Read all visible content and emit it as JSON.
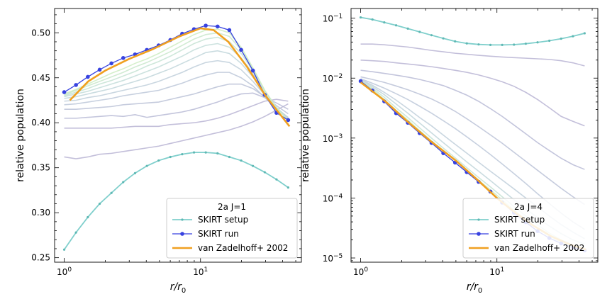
{
  "chart_data": [
    {
      "type": "line",
      "xscale": "log",
      "yscale": "linear",
      "xlim": [
        0.85,
        55
      ],
      "ylim": [
        0.245,
        0.527
      ],
      "xlabel": "r/r0",
      "xlabel_parts": {
        "base": "r/r",
        "sub": "0"
      },
      "ylabel": "relative population",
      "xticks": [
        {
          "value": 1,
          "base": "10",
          "exp": "0"
        },
        {
          "value": 10,
          "base": "10",
          "exp": "1"
        }
      ],
      "yticks": [
        "0.25",
        "0.30",
        "0.35",
        "0.40",
        "0.45",
        "0.50"
      ],
      "legend": {
        "title": "2a J=1",
        "position": "lower right"
      },
      "x": [
        1.0,
        1.22,
        1.49,
        1.82,
        2.22,
        2.71,
        3.31,
        4.04,
        4.93,
        6.01,
        7.34,
        8.96,
        10.93,
        13.34,
        16.28,
        19.87,
        24.25,
        29.6,
        36.12,
        44.0
      ],
      "series": [
        {
          "name": "SKIRT setup",
          "color": "#7fcfcc",
          "marker": "small-dot",
          "values": [
            0.259,
            0.278,
            0.295,
            0.31,
            0.322,
            0.334,
            0.344,
            0.352,
            0.358,
            0.362,
            0.365,
            0.367,
            0.367,
            0.366,
            0.362,
            0.358,
            0.352,
            0.345,
            0.337,
            0.328
          ]
        },
        {
          "name": "SKIRT run",
          "color": "#3742e0",
          "marker": "dot",
          "values": [
            0.434,
            0.442,
            0.451,
            0.459,
            0.466,
            0.472,
            0.476,
            0.481,
            0.486,
            0.492,
            0.499,
            0.504,
            0.508,
            0.507,
            0.503,
            0.481,
            0.458,
            0.431,
            0.411,
            0.403
          ]
        },
        {
          "name": "van Zadelhoff+ 2002",
          "color": "#f0a020",
          "marker": "none",
          "x": [
            1.1,
            1.5,
            2.0,
            3.0,
            4.5,
            7.0,
            10.0,
            12.5,
            16.0,
            22.0,
            30.0,
            45.0
          ],
          "values": [
            0.425,
            0.446,
            0.458,
            0.471,
            0.482,
            0.496,
            0.505,
            0.503,
            0.49,
            0.462,
            0.43,
            0.396
          ]
        }
      ],
      "iterations": [
        {
          "color": "#b8b4d4",
          "values": [
            0.362,
            0.36,
            0.362,
            0.365,
            0.366,
            0.368,
            0.37,
            0.372,
            0.374,
            0.377,
            0.38,
            0.383,
            0.386,
            0.389,
            0.392,
            0.396,
            0.401,
            0.407,
            0.414,
            0.421
          ]
        },
        {
          "color": "#b8b4d4",
          "values": [
            0.394,
            0.394,
            0.394,
            0.394,
            0.394,
            0.395,
            0.396,
            0.396,
            0.396,
            0.398,
            0.399,
            0.4,
            0.402,
            0.405,
            0.409,
            0.414,
            0.419,
            0.424,
            0.426,
            0.424
          ]
        },
        {
          "color": "#b9bbd6",
          "values": [
            0.405,
            0.405,
            0.406,
            0.407,
            0.408,
            0.407,
            0.409,
            0.406,
            0.408,
            0.41,
            0.412,
            0.415,
            0.419,
            0.423,
            0.428,
            0.432,
            0.433,
            0.428,
            0.422,
            0.415
          ]
        },
        {
          "color": "#bbc2d7",
          "values": [
            0.415,
            0.415,
            0.416,
            0.417,
            0.418,
            0.42,
            0.421,
            0.422,
            0.423,
            0.426,
            0.429,
            0.432,
            0.436,
            0.44,
            0.443,
            0.443,
            0.438,
            0.429,
            0.419,
            0.41
          ]
        },
        {
          "color": "#bdc8d9",
          "values": [
            0.42,
            0.421,
            0.423,
            0.425,
            0.427,
            0.43,
            0.432,
            0.434,
            0.436,
            0.44,
            0.444,
            0.449,
            0.453,
            0.456,
            0.456,
            0.45,
            0.441,
            0.428,
            0.416,
            0.406
          ]
        },
        {
          "color": "#bfcfda",
          "values": [
            0.424,
            0.425,
            0.428,
            0.43,
            0.433,
            0.436,
            0.439,
            0.442,
            0.446,
            0.451,
            0.456,
            0.462,
            0.467,
            0.469,
            0.467,
            0.459,
            0.446,
            0.431,
            0.417,
            0.405
          ]
        },
        {
          "color": "#c1d6db",
          "values": [
            0.427,
            0.429,
            0.432,
            0.435,
            0.438,
            0.442,
            0.446,
            0.45,
            0.455,
            0.46,
            0.466,
            0.472,
            0.478,
            0.48,
            0.477,
            0.466,
            0.451,
            0.433,
            0.417,
            0.404
          ]
        },
        {
          "color": "#c3ddd9",
          "values": [
            0.429,
            0.432,
            0.435,
            0.439,
            0.443,
            0.447,
            0.452,
            0.457,
            0.462,
            0.468,
            0.474,
            0.481,
            0.486,
            0.488,
            0.484,
            0.472,
            0.455,
            0.435,
            0.417,
            0.403
          ]
        },
        {
          "color": "#c6e3d3",
          "values": [
            0.43,
            0.434,
            0.438,
            0.443,
            0.447,
            0.452,
            0.457,
            0.463,
            0.468,
            0.474,
            0.481,
            0.488,
            0.493,
            0.495,
            0.49,
            0.477,
            0.458,
            0.436,
            0.417,
            0.403
          ]
        },
        {
          "color": "#c9e8cb",
          "values": [
            0.431,
            0.436,
            0.441,
            0.446,
            0.451,
            0.456,
            0.462,
            0.467,
            0.473,
            0.479,
            0.486,
            0.493,
            0.498,
            0.5,
            0.496,
            0.481,
            0.46,
            0.436,
            0.416,
            0.403
          ]
        },
        {
          "color": "#cdecc2",
          "values": [
            0.432,
            0.437,
            0.443,
            0.449,
            0.455,
            0.46,
            0.466,
            0.471,
            0.477,
            0.484,
            0.491,
            0.498,
            0.503,
            0.504,
            0.5,
            0.484,
            0.461,
            0.436,
            0.416,
            0.403
          ]
        }
      ]
    },
    {
      "type": "line",
      "xscale": "log",
      "yscale": "log",
      "xlim": [
        0.85,
        55
      ],
      "ylim": [
        8.5e-06,
        0.145
      ],
      "xlabel": "r/r0",
      "xlabel_parts": {
        "base": "r/r",
        "sub": "0"
      },
      "ylabel": "relative population",
      "xticks": [
        {
          "value": 1,
          "base": "10",
          "exp": "0"
        },
        {
          "value": 10,
          "base": "10",
          "exp": "1"
        }
      ],
      "yticks": [
        {
          "value": 1e-05,
          "base": "10",
          "exp": "−5"
        },
        {
          "value": 0.0001,
          "base": "10",
          "exp": "−4"
        },
        {
          "value": 0.001,
          "base": "10",
          "exp": "−3"
        },
        {
          "value": 0.01,
          "base": "10",
          "exp": "−2"
        },
        {
          "value": 0.1,
          "base": "10",
          "exp": "−1"
        }
      ],
      "legend": {
        "title": "2a J=4",
        "position": "lower right"
      },
      "x": [
        1.0,
        1.22,
        1.49,
        1.82,
        2.22,
        2.71,
        3.31,
        4.04,
        4.93,
        6.01,
        7.34,
        8.96,
        10.93,
        13.34,
        16.28,
        19.87,
        24.25,
        29.6,
        36.12,
        44.0
      ],
      "series": [
        {
          "name": "SKIRT setup",
          "color": "#7fcfcc",
          "marker": "small-dot",
          "values": [
            0.103,
            0.095,
            0.085,
            0.076,
            0.067,
            0.059,
            0.052,
            0.046,
            0.041,
            0.038,
            0.0365,
            0.0358,
            0.0358,
            0.0362,
            0.0375,
            0.0395,
            0.042,
            0.0455,
            0.05,
            0.056
          ]
        },
        {
          "name": "SKIRT run",
          "color": "#3742e0",
          "marker": "dot",
          "values": [
            0.0089,
            0.0062,
            0.0041,
            0.0026,
            0.0018,
            0.00121,
            0.00083,
            0.00056,
            0.00039,
            0.00027,
            0.000186,
            0.000128,
            8.4e-05,
            5.7e-05,
            3.95e-05,
            2.8e-05,
            2.15e-05,
            1.75e-05,
            1.5e-05,
            1.34e-05
          ]
        },
        {
          "name": "van Zadelhoff+ 2002",
          "color": "#f0a020",
          "marker": "none",
          "x": [
            1.0,
            1.5,
            2.2,
            3.3,
            5.0,
            7.3,
            10.0,
            13.0,
            18.0,
            25.0,
            35.0,
            45.0
          ],
          "values": [
            0.0085,
            0.0042,
            0.0019,
            0.00087,
            0.00042,
            0.000195,
            0.0001,
            6.2e-05,
            3.6e-05,
            2.3e-05,
            1.65e-05,
            1.38e-05
          ]
        }
      ],
      "iterations": [
        {
          "color": "#b8b4d4",
          "values": [
            0.037,
            0.037,
            0.036,
            0.0345,
            0.033,
            0.031,
            0.029,
            0.0275,
            0.026,
            0.025,
            0.024,
            0.0232,
            0.0225,
            0.022,
            0.0215,
            0.021,
            0.0205,
            0.0195,
            0.018,
            0.016
          ]
        },
        {
          "color": "#b8b4d4",
          "values": [
            0.02,
            0.0195,
            0.019,
            0.018,
            0.0172,
            0.0164,
            0.0155,
            0.0145,
            0.0135,
            0.0125,
            0.0113,
            0.01,
            0.0087,
            0.0073,
            0.0058,
            0.0044,
            0.0032,
            0.0023,
            0.0019,
            0.0016
          ]
        },
        {
          "color": "#b9bbd6",
          "values": [
            0.0135,
            0.0128,
            0.012,
            0.0112,
            0.0104,
            0.0095,
            0.0085,
            0.0075,
            0.0063,
            0.0052,
            0.0041,
            0.0031,
            0.0023,
            0.00165,
            0.00118,
            0.00084,
            0.00062,
            0.00046,
            0.00036,
            0.0003
          ]
        },
        {
          "color": "#bbc2d7",
          "values": [
            0.0105,
            0.0095,
            0.0085,
            0.0074,
            0.0064,
            0.0054,
            0.0045,
            0.0036,
            0.0028,
            0.0021,
            0.00155,
            0.00113,
            0.00082,
            0.00058,
            0.00041,
            0.00029,
            0.000205,
            0.000145,
            0.000105,
            7.8e-05
          ]
        },
        {
          "color": "#bdc8d9",
          "values": [
            0.0098,
            0.0082,
            0.0068,
            0.0055,
            0.0044,
            0.0034,
            0.0026,
            0.00195,
            0.00145,
            0.00105,
            0.00075,
            0.00053,
            0.00037,
            0.000255,
            0.000175,
            0.000118,
            8.1e-05,
            5.6e-05,
            4e-05,
            3e-05
          ]
        },
        {
          "color": "#bfcfda",
          "values": [
            0.0095,
            0.0076,
            0.0058,
            0.0043,
            0.0031,
            0.0022,
            0.0016,
            0.00112,
            0.00079,
            0.00056,
            0.000395,
            0.00028,
            0.0002,
            0.000142,
            0.0001,
            7.1e-05,
            5e-05,
            3.6e-05,
            2.7e-05,
            2.1e-05
          ]
        },
        {
          "color": "#c1d6db",
          "values": [
            0.0093,
            0.0072,
            0.0053,
            0.0037,
            0.0026,
            0.00178,
            0.00122,
            0.00084,
            0.00058,
            0.0004,
            0.00028,
            0.000195,
            0.000135,
            9.4e-05,
            6.6e-05,
            4.7e-05,
            3.4e-05,
            2.55e-05,
            2e-05,
            1.7e-05
          ]
        },
        {
          "color": "#c6e3d3",
          "values": [
            0.0091,
            0.0068,
            0.0048,
            0.0032,
            0.0022,
            0.00148,
            0.001,
            0.00068,
            0.00047,
            0.00032,
            0.00022,
            0.000153,
            0.000105,
            7.2e-05,
            5e-05,
            3.55e-05,
            2.6e-05,
            2e-05,
            1.65e-05,
            1.45e-05
          ]
        },
        {
          "color": "#cdecc2",
          "values": [
            0.009,
            0.0065,
            0.0044,
            0.0029,
            0.002,
            0.00133,
            0.0009,
            0.00061,
            0.00042,
            0.00029,
            0.000198,
            0.000137,
            9.3e-05,
            6.3e-05,
            4.35e-05,
            3.1e-05,
            2.3e-05,
            1.85e-05,
            1.55e-05,
            1.4e-05
          ]
        }
      ]
    }
  ]
}
